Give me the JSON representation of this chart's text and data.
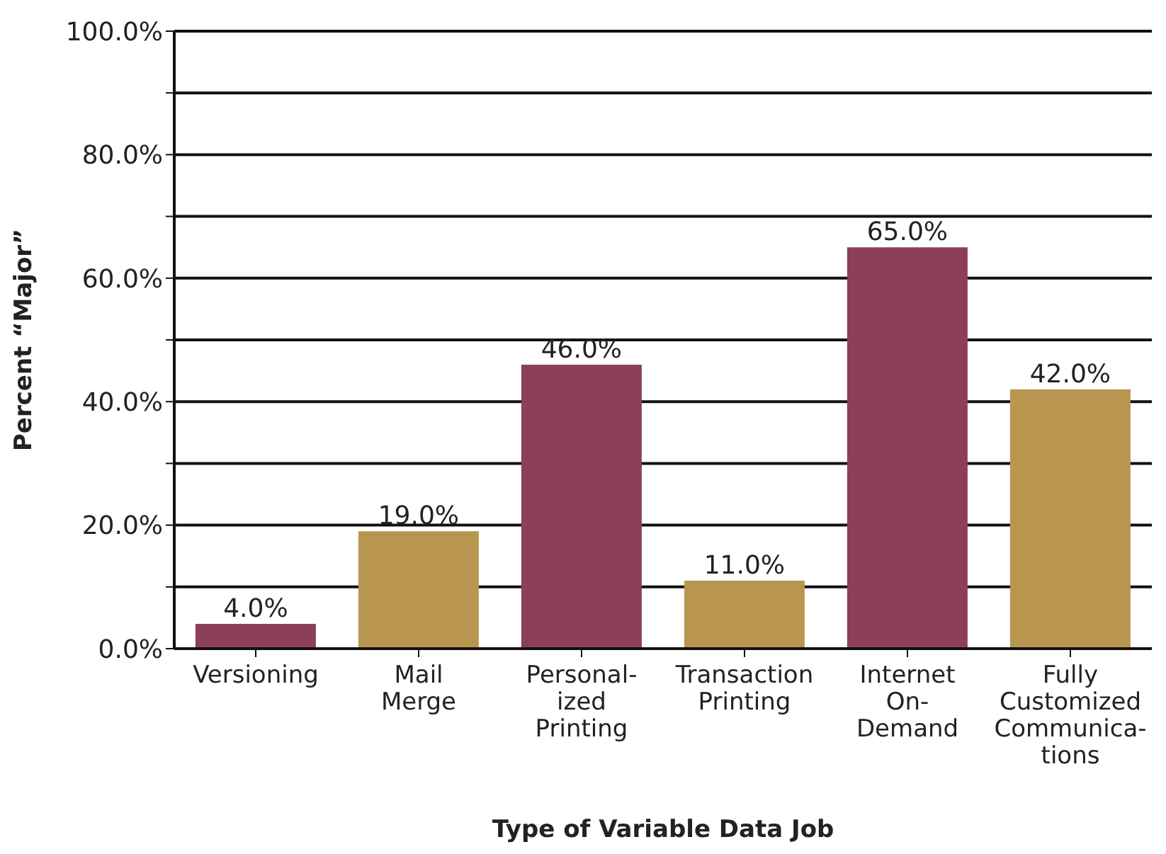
{
  "chart_data": {
    "type": "bar",
    "xlabel": "Type of Variable Data Job",
    "ylabel": "Percent “Major”",
    "categories": [
      "Versioning",
      "Mail\nMerge",
      "Personal-\nized\nPrinting",
      "Transaction\nPrinting",
      "Internet\nOn-\nDemand",
      "Fully\nCustomized\nCommunica-\ntions"
    ],
    "values": [
      4,
      19,
      46,
      11,
      65,
      42
    ],
    "colors": [
      "#8b3f5a",
      "#b99650",
      "#8b3f5a",
      "#b99650",
      "#8b3f5a",
      "#b99650"
    ],
    "value_labels": [
      "4.0%",
      "19.0%",
      "46.0%",
      "11.0%",
      "65.0%",
      "42.0%"
    ],
    "ylim": [
      0,
      100
    ],
    "yticks": [
      {
        "value": 0,
        "label": "0.0%"
      },
      {
        "value": 10,
        "label": null
      },
      {
        "value": 20,
        "label": "20.0%"
      },
      {
        "value": 30,
        "label": null
      },
      {
        "value": 40,
        "label": "40.0%"
      },
      {
        "value": 50,
        "label": null
      },
      {
        "value": 60,
        "label": "60.0%"
      },
      {
        "value": 70,
        "label": null
      },
      {
        "value": 80,
        "label": "80.0%"
      },
      {
        "value": 90,
        "label": null
      },
      {
        "value": 100,
        "label": "100.0%"
      }
    ],
    "grid": "y"
  }
}
